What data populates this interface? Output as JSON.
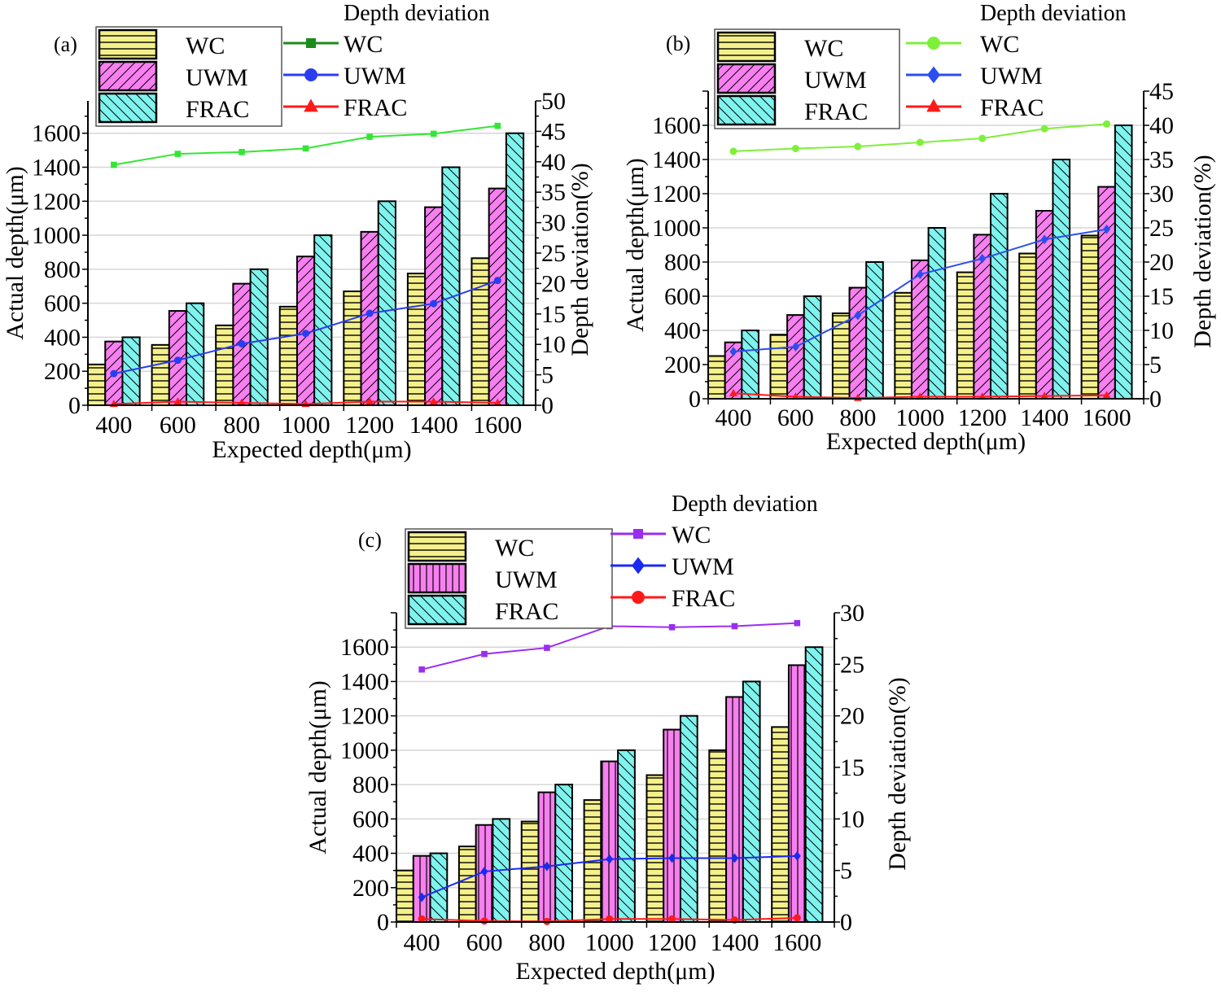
{
  "chart_data": [
    {
      "panel": "(a)",
      "type": "bar+line",
      "categories": [
        "400",
        "600",
        "800",
        "1000",
        "1200",
        "1400",
        "1600"
      ],
      "xlabel": "Expected depth(μm)",
      "ylabel": "Actual depth(μm)",
      "y2label": "Depth deviation(%)",
      "ylim": [
        0,
        1790
      ],
      "yticks": [
        0,
        200,
        400,
        600,
        800,
        1000,
        1200,
        1400,
        1600
      ],
      "y2lim": [
        0,
        50
      ],
      "y2ticks": [
        0,
        5,
        10,
        15,
        20,
        25,
        30,
        35,
        40,
        45,
        50
      ],
      "grid": true,
      "bar_legend": [
        "WC",
        "UWM",
        "FRAC"
      ],
      "line_legend_title": "Depth deviation",
      "bar_series": [
        {
          "name": "WC",
          "values": [
            240,
            355,
            470,
            580,
            670,
            775,
            865
          ],
          "fill": "#f4f08a",
          "pattern": "horizontal"
        },
        {
          "name": "UWM",
          "values": [
            375,
            555,
            715,
            875,
            1020,
            1165,
            1275
          ],
          "fill": "#f77ff0",
          "pattern": "diag-right"
        },
        {
          "name": "FRAC",
          "values": [
            400,
            600,
            800,
            1000,
            1200,
            1400,
            1600
          ],
          "fill": "#7ff3ee",
          "pattern": "diag-left"
        }
      ],
      "line_series": [
        {
          "name": "WC",
          "values": [
            39.5,
            41.3,
            41.6,
            42.2,
            44.1,
            44.6,
            45.9
          ],
          "color": "#33e633",
          "legend_color": "#1a8c1a",
          "marker": "square"
        },
        {
          "name": "UWM",
          "values": [
            5.2,
            7.4,
            10.1,
            11.8,
            15.1,
            16.7,
            20.5
          ],
          "color": "#2a3df0",
          "marker": "circle"
        },
        {
          "name": "FRAC",
          "values": [
            0.2,
            0.6,
            0.4,
            0.2,
            0.6,
            0.6,
            0.4
          ],
          "color": "#ff1a1a",
          "marker": "triangle"
        }
      ]
    },
    {
      "panel": "(b)",
      "type": "bar+line",
      "categories": [
        "400",
        "600",
        "800",
        "1000",
        "1200",
        "1400",
        "1600"
      ],
      "xlabel": "Expected depth(μm)",
      "ylabel": "Actual depth(μm)",
      "y2label": "Depth deviation(%)",
      "ylim": [
        0,
        1800
      ],
      "yticks": [
        0,
        200,
        400,
        600,
        800,
        1000,
        1200,
        1400,
        1600
      ],
      "y2lim": [
        0,
        45
      ],
      "y2ticks": [
        0,
        5,
        10,
        15,
        20,
        25,
        30,
        35,
        40,
        45
      ],
      "grid": true,
      "bar_legend": [
        "WC",
        "UWM",
        "FRAC"
      ],
      "line_legend_title": "Depth deviation",
      "bar_series": [
        {
          "name": "WC",
          "values": [
            250,
            375,
            500,
            620,
            740,
            850,
            955
          ],
          "fill": "#f4f08a",
          "pattern": "horizontal"
        },
        {
          "name": "UWM",
          "values": [
            330,
            490,
            650,
            810,
            960,
            1100,
            1240
          ],
          "fill": "#f77ff0",
          "pattern": "diag-right"
        },
        {
          "name": "FRAC",
          "values": [
            400,
            600,
            800,
            1000,
            1200,
            1400,
            1600
          ],
          "fill": "#7ff3ee",
          "pattern": "diag-left"
        }
      ],
      "line_series": [
        {
          "name": "WC",
          "values": [
            36.2,
            36.6,
            36.9,
            37.5,
            38.1,
            39.5,
            40.2
          ],
          "color": "#7ef03a",
          "legend_color": "#7ef03a",
          "marker": "circle"
        },
        {
          "name": "UWM",
          "values": [
            6.9,
            7.6,
            12.2,
            18.2,
            20.5,
            23.3,
            24.8
          ],
          "color": "#2a4ef0",
          "marker": "diamond"
        },
        {
          "name": "FRAC",
          "values": [
            0.8,
            0.3,
            0.1,
            0.3,
            0.3,
            0.4,
            0.5
          ],
          "color": "#ff1a1a",
          "marker": "triangle"
        }
      ]
    },
    {
      "panel": "(c)",
      "type": "bar+line",
      "categories": [
        "400",
        "600",
        "800",
        "1000",
        "1200",
        "1400",
        "1600"
      ],
      "xlabel": "Expected depth(μm)",
      "ylabel": "Actual depth(μm)",
      "y2label": "Depth deviation(%)",
      "ylim": [
        0,
        1800
      ],
      "yticks": [
        0,
        200,
        400,
        600,
        800,
        1000,
        1200,
        1400,
        1600
      ],
      "y2lim": [
        0,
        30
      ],
      "y2ticks": [
        0,
        5,
        10,
        15,
        20,
        25,
        30
      ],
      "grid": true,
      "bar_legend": [
        "WC",
        "UWM",
        "FRAC"
      ],
      "line_legend_title": "Depth deviation",
      "bar_series": [
        {
          "name": "WC",
          "values": [
            300,
            440,
            585,
            710,
            855,
            1000,
            1135
          ],
          "fill": "#f4f08a",
          "pattern": "horizontal"
        },
        {
          "name": "UWM",
          "values": [
            385,
            565,
            755,
            935,
            1120,
            1310,
            1495
          ],
          "fill": "#f77ff0",
          "pattern": "vertical"
        },
        {
          "name": "FRAC",
          "values": [
            400,
            600,
            800,
            1000,
            1200,
            1400,
            1600
          ],
          "fill": "#7ff3ee",
          "pattern": "diag-left"
        }
      ],
      "line_series": [
        {
          "name": "WC",
          "values": [
            24.5,
            26.0,
            26.6,
            28.7,
            28.6,
            28.7,
            29.0
          ],
          "color": "#9a2df0",
          "legend_color": "#9a2df0",
          "marker": "square"
        },
        {
          "name": "UWM",
          "values": [
            2.4,
            4.9,
            5.4,
            6.1,
            6.2,
            6.2,
            6.4
          ],
          "color": "#1a2af0",
          "marker": "diamond"
        },
        {
          "name": "FRAC",
          "values": [
            0.3,
            0.1,
            0.05,
            0.3,
            0.3,
            0.2,
            0.4
          ],
          "color": "#ff1a1a",
          "marker": "circle"
        }
      ]
    }
  ]
}
